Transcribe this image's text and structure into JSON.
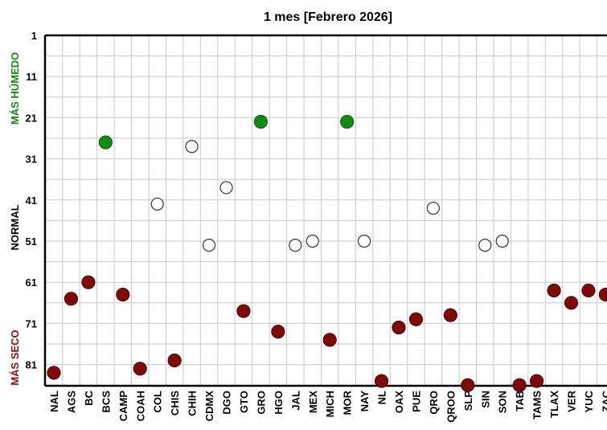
{
  "chart_data": {
    "type": "scatter",
    "title": "1 mes [Febrero 2026]",
    "y_axis": {
      "ticks": [
        1,
        11,
        21,
        31,
        41,
        51,
        61,
        71,
        81
      ],
      "range": [
        1,
        86
      ],
      "inverted": true,
      "labels": {
        "top": "MÁS HÚMEDO",
        "middle": "NORMAL",
        "bottom": "MÁS SECO"
      }
    },
    "grid": true,
    "categories": [
      "NAL",
      "AGS",
      "BC",
      "BCS",
      "CAMP",
      "COAH",
      "COL",
      "CHIS",
      "CHIH",
      "CDMX",
      "DGO",
      "GTO",
      "GRO",
      "HGO",
      "JAL",
      "MEX",
      "MICH",
      "MOR",
      "NAY",
      "NL",
      "OAX",
      "PUE",
      "QRO",
      "QROO",
      "SLP",
      "SIN",
      "SON",
      "TAB",
      "TAMS",
      "TLAX",
      "VER",
      "YUC",
      "ZAC"
    ],
    "values": [
      83,
      65,
      61,
      27,
      64,
      82,
      42,
      80,
      28,
      52,
      38,
      68,
      22,
      73,
      52,
      51,
      75,
      22,
      51,
      85,
      72,
      70,
      43,
      69,
      86,
      52,
      51,
      86,
      85,
      63,
      66,
      63,
      64
    ],
    "status": [
      "dry",
      "dry",
      "dry",
      "wet",
      "dry",
      "dry",
      "normal",
      "dry",
      "normal",
      "normal",
      "normal",
      "dry",
      "wet",
      "dry",
      "normal",
      "normal",
      "dry",
      "wet",
      "normal",
      "dry",
      "dry",
      "dry",
      "normal",
      "dry",
      "dry",
      "normal",
      "normal",
      "dry",
      "dry",
      "dry",
      "dry",
      "dry",
      "dry"
    ],
    "colors": {
      "wet": "#138a13",
      "normal": "#ffffff",
      "dry": "#7d0a0a",
      "wet_label": "#138a13",
      "normal_label": "#000000",
      "dry_label": "#8b0a0a",
      "grid": "#c8c8c8",
      "axis": "#000000"
    }
  }
}
